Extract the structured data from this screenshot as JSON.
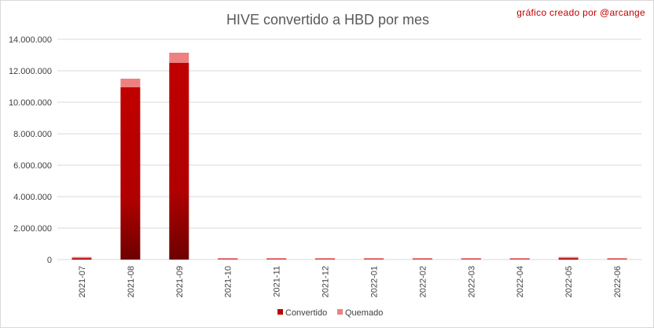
{
  "chart_data": {
    "type": "bar",
    "stacked": true,
    "title": "HIVE convertido a HBD por mes",
    "credit": "gráfico creado por @arcange",
    "xlabel": "",
    "ylabel": "",
    "categories": [
      "2021-07",
      "2021-08",
      "2021-09",
      "2021-10",
      "2021-11",
      "2021-12",
      "2022-01",
      "2022-02",
      "2022-03",
      "2022-04",
      "2022-05",
      "2022-06"
    ],
    "series": [
      {
        "name": "Convertido",
        "color": "#c00000",
        "values": [
          90000,
          10950000,
          12500000,
          20000,
          20000,
          20000,
          20000,
          20000,
          20000,
          20000,
          90000,
          20000
        ]
      },
      {
        "name": "Quemado",
        "color": "#ee8080",
        "values": [
          10000,
          550000,
          650000,
          15000,
          15000,
          15000,
          15000,
          15000,
          15000,
          15000,
          10000,
          15000
        ]
      }
    ],
    "ylim": [
      0,
      14000000
    ],
    "yticks": [
      0,
      2000000,
      4000000,
      6000000,
      8000000,
      10000000,
      12000000,
      14000000
    ],
    "ytick_labels": [
      "0",
      "2.000.000",
      "4.000.000",
      "6.000.000",
      "8.000.000",
      "10.000.000",
      "12.000.000",
      "14.000.000"
    ],
    "grid": true,
    "legend_position": "bottom"
  }
}
